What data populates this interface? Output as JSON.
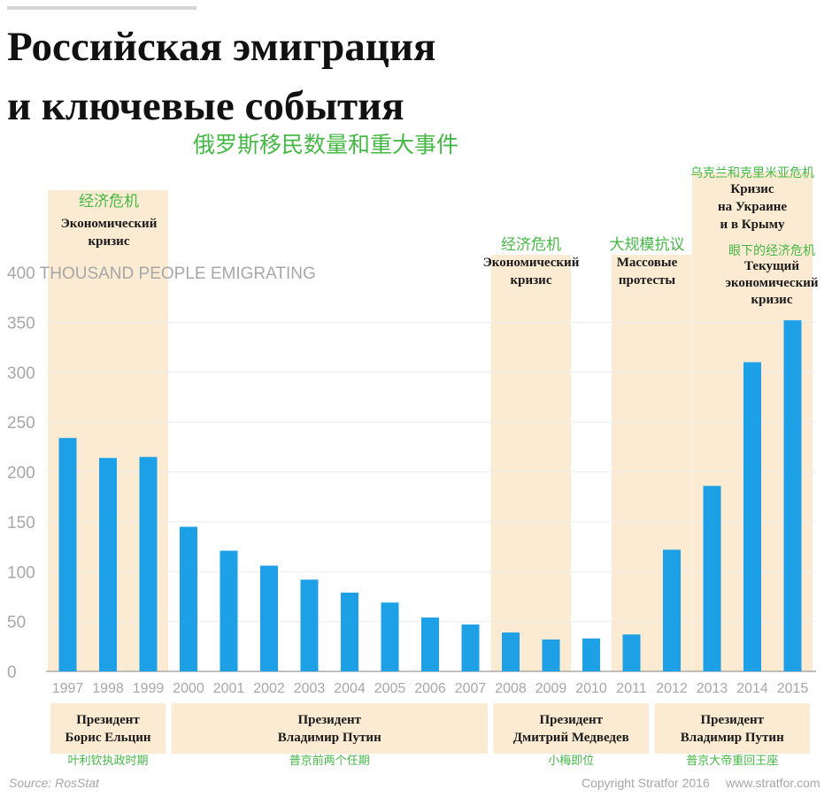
{
  "header": {
    "title_line1": "Российская эмиграция",
    "title_line2": "и ключевые события",
    "subtitle_cn": "俄罗斯移民数量和重大事件"
  },
  "chart_data": {
    "type": "bar",
    "title": "Российская эмиграция и ключевые события",
    "ylabel": "400 THOUSAND PEOPLE EMIGRATING",
    "ylim": [
      0,
      400
    ],
    "yticks": [
      0,
      50,
      100,
      150,
      200,
      250,
      300,
      350,
      400
    ],
    "ytick_labels": [
      "0",
      "50",
      "100",
      "150",
      "200",
      "250",
      "300",
      "350",
      "400 THOUSAND PEOPLE EMIGRATING"
    ],
    "categories": [
      "1997",
      "1998",
      "1999",
      "2000",
      "2001",
      "2002",
      "2003",
      "2004",
      "2005",
      "2006",
      "2007",
      "2008",
      "2009",
      "2010",
      "2011",
      "2012",
      "2013",
      "2014",
      "2015"
    ],
    "values": [
      234,
      214,
      215,
      145,
      121,
      106,
      92,
      79,
      69,
      54,
      47,
      39,
      32,
      33,
      37,
      122,
      186,
      310,
      352
    ],
    "bar_color": "#1ea0e6",
    "event_color": "#fbebd2",
    "events": [
      {
        "cn": "经济危机",
        "ru_lines": [
          "Экономический",
          "кризис"
        ],
        "start": "1997",
        "end": "1999"
      },
      {
        "cn": "经济危机",
        "ru_lines": [
          "Экономический",
          "кризис"
        ],
        "start": "2008",
        "end": "2009"
      },
      {
        "cn": "大规模抗议",
        "ru_lines": [
          "Массовые",
          "протесты"
        ],
        "start": "2011",
        "end": "2012"
      },
      {
        "cn": "乌克兰和克里米亚危机",
        "ru_lines": [
          "Кризис",
          "на Украине",
          "и в Крыму"
        ],
        "start": "2013",
        "end": "2015"
      },
      {
        "cn": "眼下的经济危机",
        "ru_lines": [
          "Текущий",
          "экономический",
          "кризис"
        ],
        "start": "2014",
        "end": "2015"
      }
    ],
    "presidents": [
      {
        "ru_lines": [
          "Президент",
          "Борис Ельцин"
        ],
        "cn": "叶利钦执政时期",
        "start": "1997",
        "end": "1999"
      },
      {
        "ru_lines": [
          "Президент",
          "Владимир Путин"
        ],
        "cn": "普京前两个任期",
        "start": "2000",
        "end": "2007"
      },
      {
        "ru_lines": [
          "Президент",
          "Дмитрий Медведев"
        ],
        "cn": "小梅即位",
        "start": "2008",
        "end": "2011"
      },
      {
        "ru_lines": [
          "Президент",
          "Владимир Путин"
        ],
        "cn": "普京大帝重回王座",
        "start": "2012",
        "end": "2015"
      }
    ],
    "source": "Source: RosStat",
    "copyright": "Copyright Stratfor 2016",
    "website": "www.stratfor.com"
  }
}
